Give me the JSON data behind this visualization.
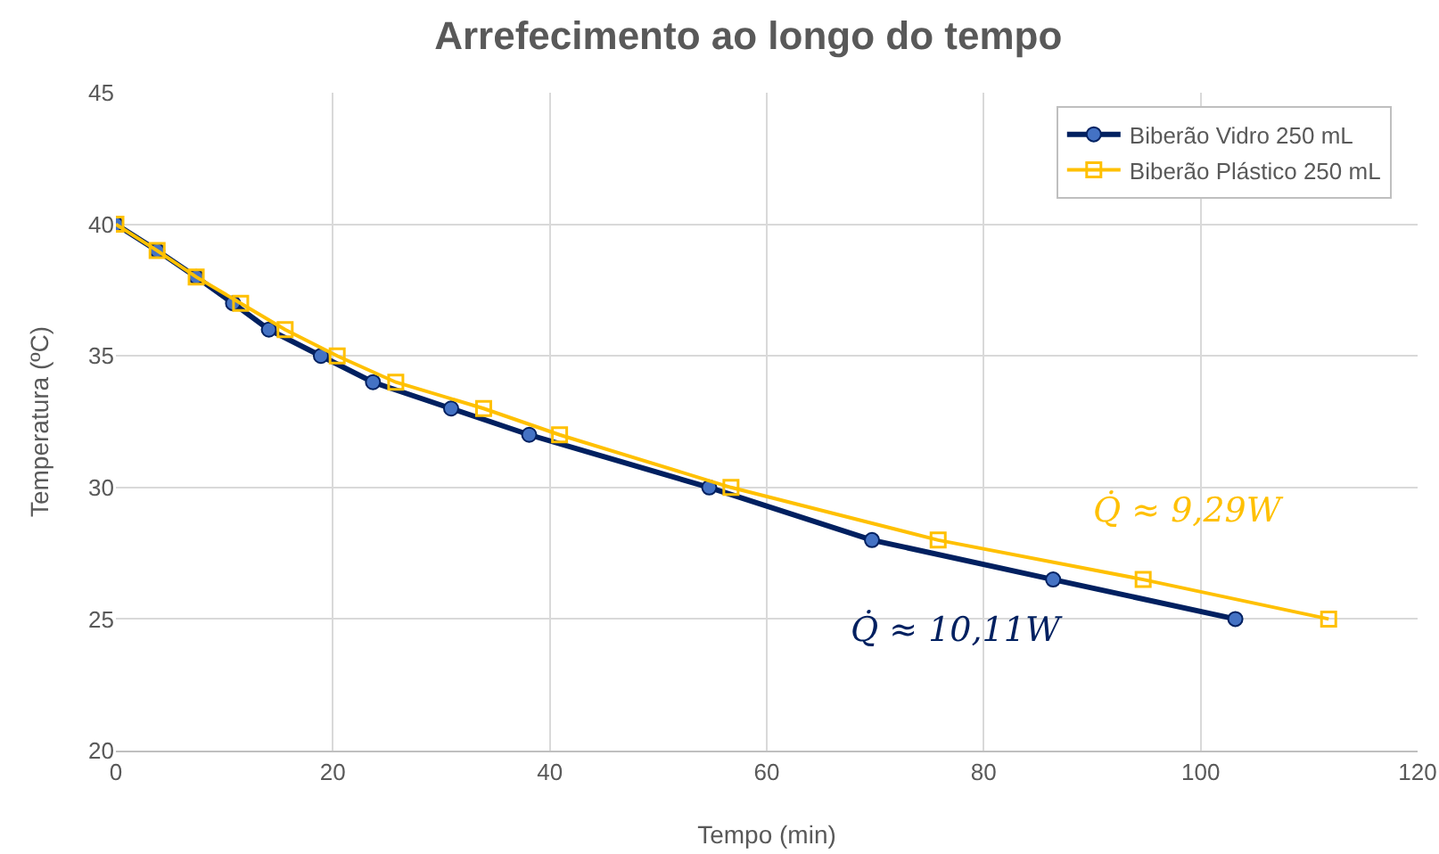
{
  "chart_data": {
    "type": "line",
    "title": "Arrefecimento ao longo do tempo",
    "xlabel": "Tempo (min)",
    "ylabel": "Temperatura (ºC)",
    "xlim": [
      0,
      120
    ],
    "xticks": [
      0,
      20,
      40,
      60,
      80,
      100,
      120
    ],
    "ylim": [
      20,
      45
    ],
    "yticks": [
      20,
      25,
      30,
      35,
      40,
      45
    ],
    "grid": true,
    "legend": "top right",
    "series": [
      {
        "name": "Biberão Vidro 250 mL",
        "color": "#002060",
        "marker": "circle",
        "x": [
          0,
          3.8,
          7.4,
          10.8,
          14.1,
          18.9,
          23.7,
          30.9,
          38.1,
          54.7,
          69.7,
          86.4,
          103.2
        ],
        "values": [
          40,
          39,
          38,
          37,
          36,
          35,
          34,
          33,
          32,
          30,
          28,
          26.5,
          25
        ]
      },
      {
        "name": "Biberão Plástico 250 mL",
        "color": "#ffc000",
        "marker": "square",
        "x": [
          0,
          3.8,
          7.4,
          11.5,
          15.6,
          20.4,
          25.8,
          33.9,
          40.9,
          56.7,
          75.8,
          94.7,
          111.8
        ],
        "values": [
          40,
          39,
          38,
          37,
          36,
          35,
          34,
          33,
          32,
          30,
          28,
          26.5,
          25
        ]
      }
    ],
    "annotations": [
      "Q̇ ≈ 10,11W",
      "Q̇ ≈ 9,29W"
    ]
  }
}
